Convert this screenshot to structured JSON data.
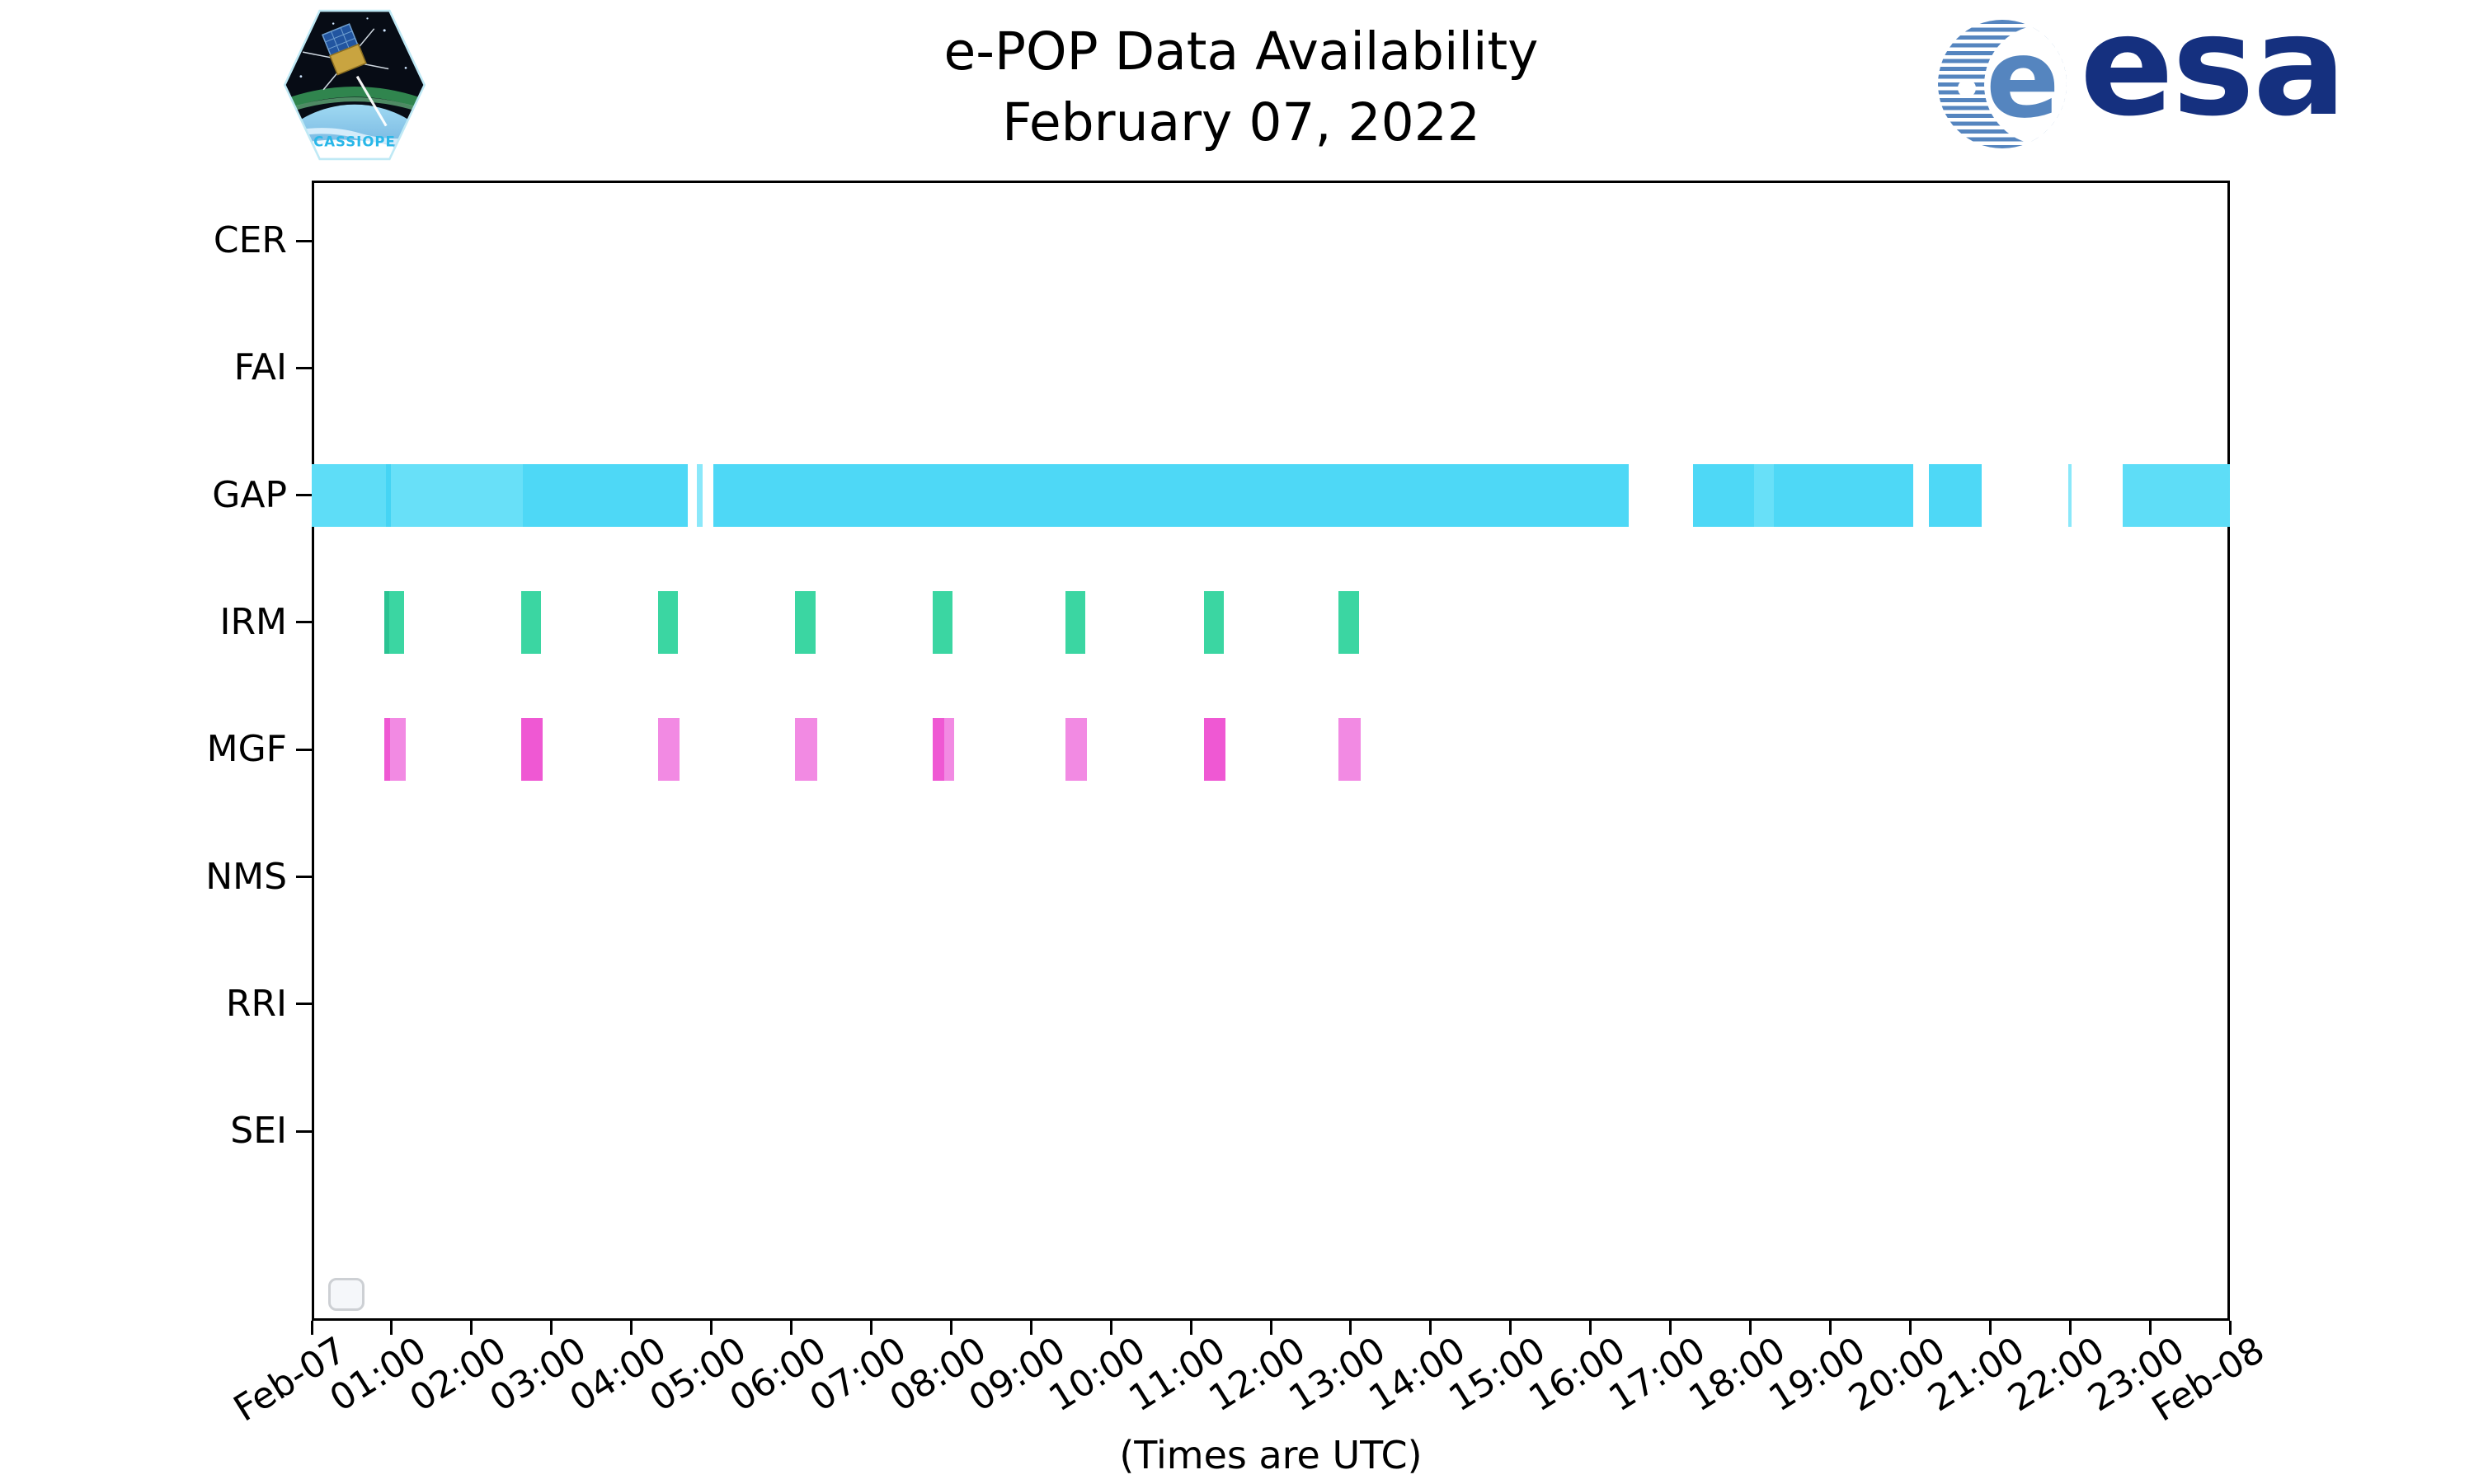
{
  "header": {
    "title": "e-POP Data Availability",
    "subtitle": "February 07, 2022"
  },
  "branding": {
    "cassiope_label": "CASSIOPE",
    "esa_monogram": "e",
    "esa_label": "esa"
  },
  "axis_note": "(Times are UTC)",
  "colors": {
    "axis": "#000000",
    "esa_text": "#15307f",
    "esa_stripe": "#5585bf",
    "gap_main": "#4ed8f6",
    "gap_mid": "#5eddf7",
    "gap_light": "#68e0f8",
    "gap_seam_dark": "#45d4f4",
    "gap_pale": "#8ae8fa",
    "irm_main": "#3bd6a2",
    "irm_dark": "#2ac392",
    "mgf_light": "#f28ae3",
    "mgf_dark": "#ef58d3"
  },
  "chart_data": {
    "type": "timeline",
    "title": "e-POP Data Availability",
    "subtitle": "February 07, 2022",
    "xlabel": "(Times are UTC)",
    "x_axis": {
      "hours_range": [
        0,
        24
      ],
      "tick_step_hours": 1,
      "tick_labels": [
        "Feb-07",
        "01:00",
        "02:00",
        "03:00",
        "04:00",
        "05:00",
        "06:00",
        "07:00",
        "08:00",
        "09:00",
        "10:00",
        "11:00",
        "12:00",
        "13:00",
        "14:00",
        "15:00",
        "16:00",
        "17:00",
        "18:00",
        "19:00",
        "20:00",
        "21:00",
        "22:00",
        "23:00",
        "Feb-08"
      ]
    },
    "categories": [
      "CER",
      "FAI",
      "GAP",
      "IRM",
      "MGF",
      "NMS",
      "RRI",
      "SEI"
    ],
    "legend": {
      "visible": true,
      "entries": []
    },
    "series": [
      {
        "name": "GAP",
        "segments": [
          {
            "start": 0.0,
            "end": 0.93,
            "shade": "gap_mid"
          },
          {
            "start": 0.93,
            "end": 0.99,
            "shade": "gap_seam_dark"
          },
          {
            "start": 0.99,
            "end": 2.64,
            "shade": "gap_light"
          },
          {
            "start": 2.64,
            "end": 4.7,
            "shade": "gap_main"
          },
          {
            "start": 4.82,
            "end": 4.89,
            "shade": "gap_pale"
          },
          {
            "start": 5.03,
            "end": 16.48,
            "shade": "gap_main"
          },
          {
            "start": 17.28,
            "end": 18.05,
            "shade": "gap_main"
          },
          {
            "start": 18.05,
            "end": 18.29,
            "shade": "gap_light"
          },
          {
            "start": 18.29,
            "end": 20.04,
            "shade": "gap_main"
          },
          {
            "start": 20.23,
            "end": 20.89,
            "shade": "gap_main"
          },
          {
            "start": 21.98,
            "end": 22.02,
            "shade": "gap_pale"
          },
          {
            "start": 22.66,
            "end": 24.0,
            "shade": "gap_mid"
          }
        ]
      },
      {
        "name": "IRM",
        "segments": [
          {
            "start": 0.91,
            "end": 1.16,
            "parts": [
              {
                "f": 0.22,
                "shade": "irm_dark"
              },
              {
                "f": 0.78,
                "shade": "irm_main"
              }
            ]
          },
          {
            "start": 2.62,
            "end": 2.87,
            "shade": "irm_main"
          },
          {
            "start": 4.33,
            "end": 4.58,
            "shade": "irm_main"
          },
          {
            "start": 6.05,
            "end": 6.3,
            "shade": "irm_main"
          },
          {
            "start": 7.77,
            "end": 8.02,
            "shade": "irm_main"
          },
          {
            "start": 9.43,
            "end": 9.68,
            "shade": "irm_main"
          },
          {
            "start": 11.16,
            "end": 11.41,
            "shade": "irm_main"
          },
          {
            "start": 12.85,
            "end": 13.1,
            "shade": "irm_main"
          }
        ]
      },
      {
        "name": "MGF",
        "segments": [
          {
            "start": 0.91,
            "end": 1.18,
            "parts": [
              {
                "f": 0.25,
                "shade": "mgf_dark"
              },
              {
                "f": 0.75,
                "shade": "mgf_light"
              }
            ]
          },
          {
            "start": 2.62,
            "end": 2.89,
            "shade": "mgf_dark"
          },
          {
            "start": 4.33,
            "end": 4.6,
            "shade": "mgf_light"
          },
          {
            "start": 6.05,
            "end": 6.32,
            "shade": "mgf_light"
          },
          {
            "start": 7.77,
            "end": 8.04,
            "parts": [
              {
                "f": 0.55,
                "shade": "mgf_dark"
              },
              {
                "f": 0.45,
                "shade": "mgf_light"
              }
            ]
          },
          {
            "start": 9.43,
            "end": 9.7,
            "shade": "mgf_light"
          },
          {
            "start": 11.16,
            "end": 11.43,
            "shade": "mgf_dark"
          },
          {
            "start": 12.85,
            "end": 13.12,
            "shade": "mgf_light"
          }
        ]
      }
    ]
  }
}
